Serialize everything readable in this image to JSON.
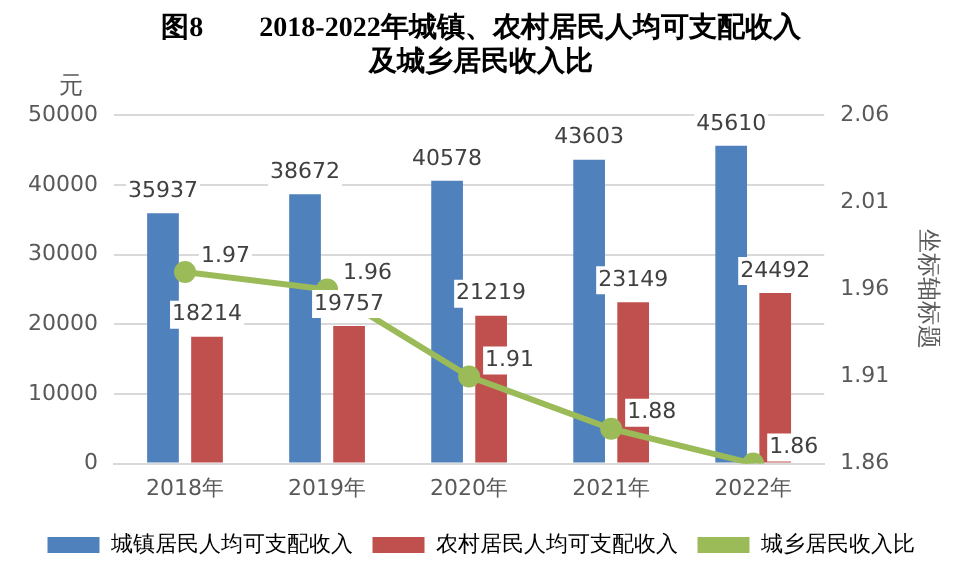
{
  "chart_data": {
    "type": "bar",
    "title": "图8        2018-2022年城镇、农村居民人均可支配收入及城乡居民收入比",
    "ylabel": "元",
    "y2label": "坐标轴标题",
    "categories": [
      "2018年",
      "2019年",
      "2020年",
      "2021年",
      "2022年"
    ],
    "series": [
      {
        "name": "城镇居民人均可支配收入",
        "color": "#4f81bd",
        "values": [
          35937,
          38672,
          40578,
          43603,
          45610
        ]
      },
      {
        "name": "农村居民人均可支配收入",
        "color": "#c0504d",
        "values": [
          18214,
          19757,
          21219,
          23149,
          24492
        ]
      },
      {
        "name": "城乡居民收入比",
        "type": "line",
        "axis": "y2",
        "color": "#9bbb59",
        "marker": "circle",
        "values": [
          1.97,
          1.96,
          1.91,
          1.88,
          1.86
        ]
      }
    ],
    "ylim": [
      0,
      50000
    ],
    "yticks": [
      0,
      10000,
      20000,
      30000,
      40000,
      50000
    ],
    "y2lim": [
      1.86,
      2.06
    ],
    "y2ticks": [
      1.86,
      1.91,
      1.96,
      2.01,
      2.06
    ],
    "grid": "y",
    "legend": "bottom",
    "data_labels": true
  }
}
